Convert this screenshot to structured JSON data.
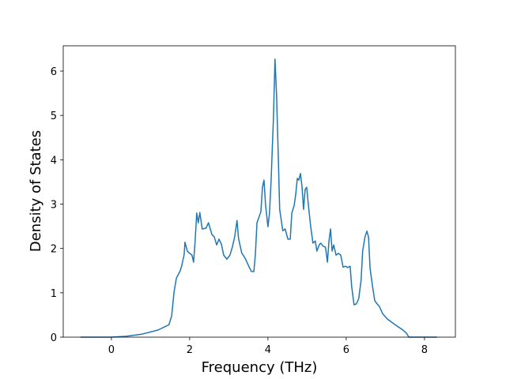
{
  "chart_data": {
    "type": "line",
    "xlabel": "Frequency (THz)",
    "ylabel": "Density of States",
    "x": [
      -0.79,
      0,
      0.38,
      0.79,
      1.19,
      1.47,
      1.54,
      1.6,
      1.66,
      1.76,
      1.8,
      1.86,
      1.88,
      1.94,
      2.0,
      2.06,
      2.1,
      2.14,
      2.18,
      2.22,
      2.26,
      2.32,
      2.42,
      2.48,
      2.57,
      2.63,
      2.69,
      2.75,
      2.81,
      2.87,
      2.95,
      3.03,
      3.09,
      3.15,
      3.21,
      3.25,
      3.33,
      3.43,
      3.52,
      3.58,
      3.64,
      3.68,
      3.72,
      3.82,
      3.86,
      3.9,
      3.94,
      4.0,
      4.04,
      4.08,
      4.14,
      4.18,
      4.22,
      4.26,
      4.3,
      4.38,
      4.44,
      4.51,
      4.57,
      4.61,
      4.67,
      4.71,
      4.75,
      4.79,
      4.83,
      4.87,
      4.91,
      4.95,
      4.99,
      5.03,
      5.09,
      5.15,
      5.21,
      5.25,
      5.31,
      5.35,
      5.41,
      5.47,
      5.52,
      5.56,
      5.6,
      5.64,
      5.68,
      5.74,
      5.8,
      5.86,
      5.92,
      5.98,
      6.04,
      6.1,
      6.14,
      6.2,
      6.26,
      6.32,
      6.38,
      6.42,
      6.48,
      6.53,
      6.57,
      6.61,
      6.67,
      6.73,
      6.79,
      6.85,
      6.93,
      7.05,
      7.25,
      7.45,
      7.54,
      7.6,
      8.32
    ],
    "values": [
      0,
      0,
      0.02,
      0.07,
      0.16,
      0.28,
      0.48,
      1.01,
      1.33,
      1.5,
      1.62,
      1.87,
      2.14,
      1.94,
      1.89,
      1.85,
      1.69,
      2.17,
      2.8,
      2.58,
      2.81,
      2.44,
      2.46,
      2.58,
      2.31,
      2.26,
      2.08,
      2.21,
      2.1,
      1.85,
      1.76,
      1.85,
      2.03,
      2.26,
      2.63,
      2.22,
      1.9,
      1.76,
      1.58,
      1.48,
      1.48,
      1.87,
      2.58,
      2.83,
      3.38,
      3.54,
      2.97,
      2.49,
      2.8,
      3.51,
      4.93,
      6.27,
      5.47,
      4.22,
      2.88,
      2.4,
      2.44,
      2.21,
      2.21,
      2.8,
      2.97,
      3.22,
      3.58,
      3.54,
      3.69,
      3.4,
      2.88,
      3.33,
      3.38,
      3.01,
      2.51,
      2.12,
      2.17,
      1.94,
      2.08,
      2.12,
      2.05,
      2.03,
      1.69,
      2.17,
      2.44,
      1.94,
      2.08,
      1.85,
      1.89,
      1.85,
      1.58,
      1.6,
      1.57,
      1.6,
      1.14,
      0.73,
      0.75,
      0.87,
      1.28,
      1.94,
      2.26,
      2.39,
      2.26,
      1.55,
      1.16,
      0.82,
      0.75,
      0.69,
      0.53,
      0.41,
      0.28,
      0.16,
      0.09,
      0,
      0
    ],
    "color": "#1f77b4",
    "xlim": [
      -1.23,
      8.79
    ],
    "xticks": [
      0,
      2,
      4,
      6,
      8
    ],
    "ylim": [
      0,
      6.57
    ],
    "yticks": [
      0,
      1,
      2,
      3,
      4,
      5,
      6
    ],
    "grid": false
  }
}
